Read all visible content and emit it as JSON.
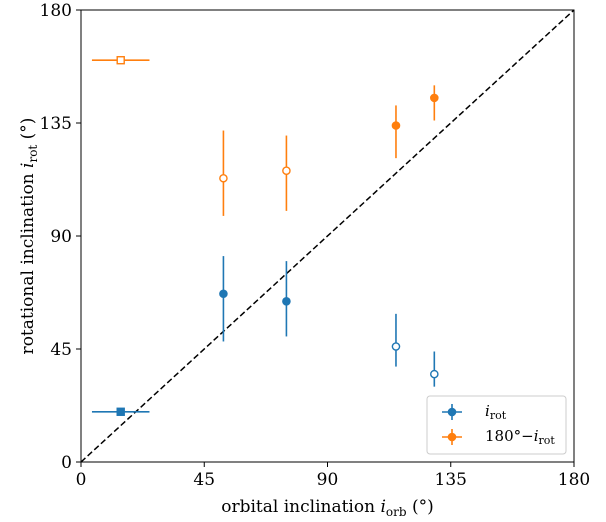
{
  "chart_data": {
    "type": "scatter",
    "xlabel_main": "orbital inclination ",
    "xlabel_var": "i",
    "xlabel_sub": "orb",
    "xlabel_unit": " (°)",
    "ylabel_main": "rotational inclination ",
    "ylabel_var": "i",
    "ylabel_sub": "rot",
    "ylabel_unit": " (°)",
    "xlim": [
      0,
      180
    ],
    "ylim": [
      0,
      180
    ],
    "xticks": [
      0,
      45,
      90,
      135,
      180
    ],
    "yticks": [
      0,
      45,
      90,
      135,
      180
    ],
    "xtick_labels": [
      "0",
      "45",
      "90",
      "135",
      "180"
    ],
    "ytick_labels": [
      "0",
      "45",
      "90",
      "135",
      "180"
    ],
    "grid": false,
    "legend_position": "bottom-right",
    "diagonal": {
      "style": "dashed",
      "color": "#000000",
      "from": [
        0,
        0
      ],
      "to": [
        180,
        180
      ]
    },
    "series": [
      {
        "name": "i_rot",
        "legend_label_var": "i",
        "legend_label_sub": "rot",
        "color": "#1f77b4",
        "points": [
          {
            "x": 14.5,
            "y": 20,
            "xerr": [
              10.5,
              10.5
            ],
            "yerr": [
              0,
              0
            ],
            "marker": "s",
            "filled": true
          },
          {
            "x": 52,
            "y": 67,
            "xerr": [
              0,
              0
            ],
            "yerr": [
              19,
              15
            ],
            "marker": "o",
            "filled": true
          },
          {
            "x": 75,
            "y": 64,
            "xerr": [
              0,
              0
            ],
            "yerr": [
              14,
              16
            ],
            "marker": "o",
            "filled": true
          },
          {
            "x": 115,
            "y": 46,
            "xerr": [
              0,
              0
            ],
            "yerr": [
              8,
              13
            ],
            "marker": "o",
            "filled": false
          },
          {
            "x": 129,
            "y": 35,
            "xerr": [
              0,
              0
            ],
            "yerr": [
              5,
              9
            ],
            "marker": "o",
            "filled": false
          }
        ]
      },
      {
        "name": "180°−i_rot",
        "legend_label_prefix": "180°−",
        "legend_label_var": "i",
        "legend_label_sub": "rot",
        "color": "#ff7f0e",
        "points": [
          {
            "x": 14.5,
            "y": 160,
            "xerr": [
              10.5,
              10.5
            ],
            "yerr": [
              0,
              0
            ],
            "marker": "s",
            "filled": false
          },
          {
            "x": 52,
            "y": 113,
            "xerr": [
              0,
              0
            ],
            "yerr": [
              15,
              19
            ],
            "marker": "o",
            "filled": false
          },
          {
            "x": 75,
            "y": 116,
            "xerr": [
              0,
              0
            ],
            "yerr": [
              16,
              14
            ],
            "marker": "o",
            "filled": false
          },
          {
            "x": 115,
            "y": 134,
            "xerr": [
              0,
              0
            ],
            "yerr": [
              13,
              8
            ],
            "marker": "o",
            "filled": true
          },
          {
            "x": 129,
            "y": 145,
            "xerr": [
              0,
              0
            ],
            "yerr": [
              9,
              5
            ],
            "marker": "o",
            "filled": true
          }
        ]
      }
    ]
  }
}
